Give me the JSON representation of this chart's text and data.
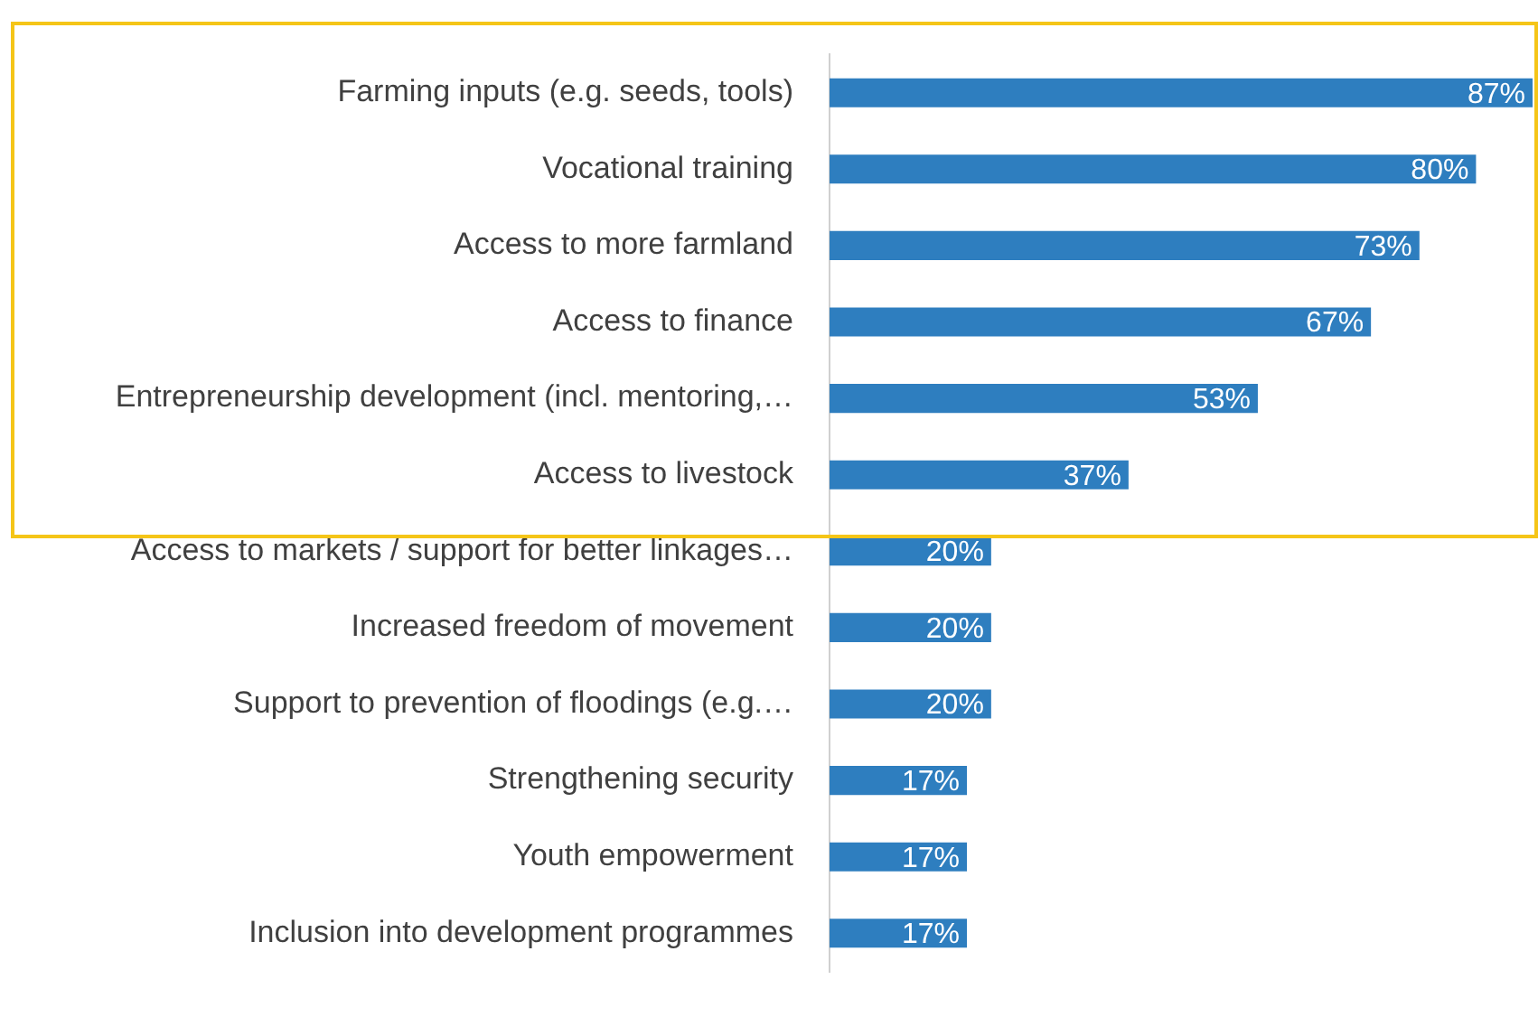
{
  "chart_data": {
    "type": "bar",
    "orientation": "horizontal",
    "categories": [
      "Farming inputs (e.g. seeds, tools)",
      "Vocational training",
      "Access to more farmland",
      "Access to finance",
      "Entrepreneurship development (incl. mentoring,…",
      "Access to livestock",
      "Access to markets / support for better linkages…",
      "Increased freedom of movement",
      "Support to prevention of floodings (e.g.…",
      "Strengthening security",
      "Youth empowerment",
      "Inclusion into development programmes"
    ],
    "values": [
      87,
      80,
      73,
      67,
      53,
      37,
      20,
      20,
      20,
      17,
      17,
      17
    ],
    "value_labels": [
      "87%",
      "80%",
      "73%",
      "67%",
      "53%",
      "37%",
      "20%",
      "20%",
      "20%",
      "17%",
      "17%",
      "17%"
    ],
    "color": "#2e7ebf",
    "grid": false,
    "legend": false,
    "tick_labels": "y"
  }
}
